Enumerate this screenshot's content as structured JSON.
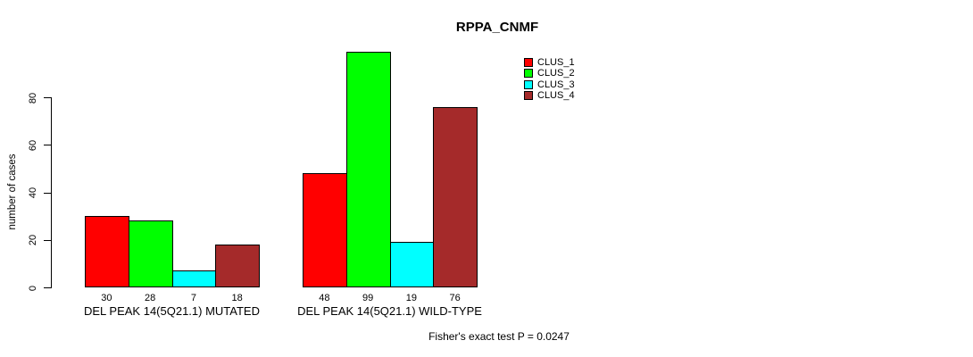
{
  "chart_data": {
    "type": "bar",
    "title": "RPPA_CNMF",
    "ylabel": "number of cases",
    "xlabel": "",
    "categories": [
      "DEL PEAK 14(5Q21.1) MUTATED",
      "DEL PEAK 14(5Q21.1) WILD-TYPE"
    ],
    "series": [
      {
        "name": "CLUS_1",
        "color": "#ff0000",
        "values": [
          30,
          48
        ]
      },
      {
        "name": "CLUS_2",
        "color": "#00ff00",
        "values": [
          28,
          99
        ]
      },
      {
        "name": "CLUS_3",
        "color": "#00ffff",
        "values": [
          7,
          19
        ]
      },
      {
        "name": "CLUS_4",
        "color": "#a52a2a",
        "values": [
          18,
          76
        ]
      }
    ],
    "yticks": [
      0,
      20,
      40,
      60,
      80
    ],
    "ylim": [
      0,
      80
    ],
    "grid": false,
    "legend_position": "top-right",
    "annotation": "Fisher's exact test P = 0.0247"
  }
}
